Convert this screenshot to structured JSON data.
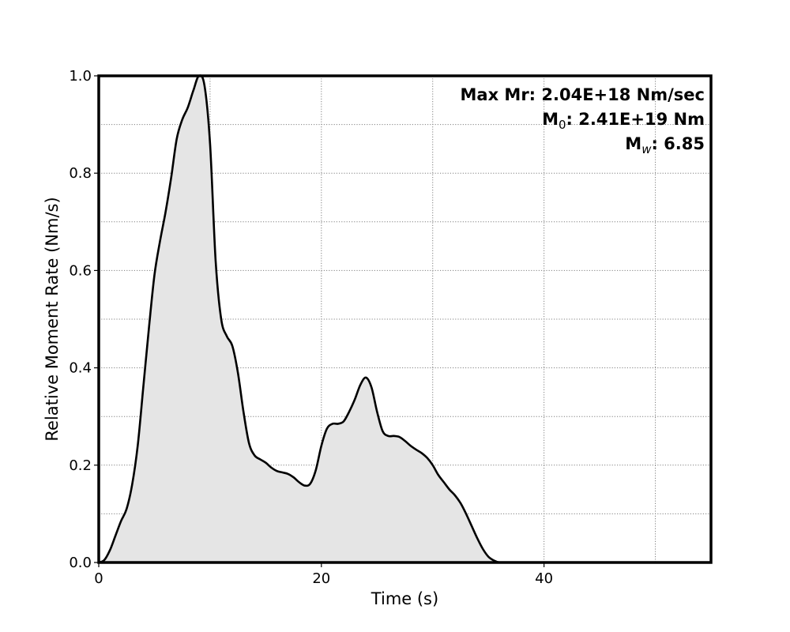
{
  "chart_data": {
    "type": "area",
    "xlabel": "Time (s)",
    "ylabel": "Relative Moment Rate (Nm/s)",
    "xlim": [
      0,
      55
    ],
    "ylim": [
      0,
      1.0
    ],
    "x_ticks": [
      0,
      20,
      40
    ],
    "x_tick_labels": [
      "0",
      "20",
      "40"
    ],
    "y_ticks": [
      0,
      0.2,
      0.4,
      0.6,
      0.8,
      1.0
    ],
    "y_tick_labels": [
      "0.0",
      "0.2",
      "0.4",
      "0.6",
      "0.8",
      "1.0"
    ],
    "x_grid": [
      0,
      10,
      20,
      30,
      40,
      50
    ],
    "y_grid": [
      0,
      0.1,
      0.2,
      0.3,
      0.4,
      0.5,
      0.6,
      0.7,
      0.8,
      0.9,
      1.0
    ],
    "grid": true,
    "line_color": "#000000",
    "fill_color": "#e5e5e5",
    "series": [
      {
        "x": [
          0,
          0.5,
          1,
          1.5,
          2,
          2.5,
          3,
          3.5,
          4,
          4.5,
          5,
          5.5,
          6,
          6.5,
          7,
          7.5,
          8,
          8.5,
          9,
          9.5,
          10,
          10.5,
          11,
          11.5,
          12,
          12.5,
          13,
          13.5,
          14,
          14.5,
          15,
          15.5,
          16,
          16.5,
          17,
          17.5,
          18,
          18.5,
          19,
          19.5,
          20,
          20.5,
          21,
          21.5,
          22,
          22.5,
          23,
          23.5,
          24,
          24.5,
          25,
          25.5,
          26,
          26.5,
          27,
          27.5,
          28,
          28.5,
          29,
          29.5,
          30,
          30.5,
          31,
          31.5,
          32,
          32.5,
          33,
          33.5,
          34,
          34.5,
          35,
          35.5,
          36,
          36.5,
          37,
          38,
          40,
          45,
          50,
          55
        ],
        "y": [
          0.0,
          0.005,
          0.025,
          0.055,
          0.085,
          0.11,
          0.16,
          0.24,
          0.36,
          0.48,
          0.59,
          0.66,
          0.72,
          0.79,
          0.87,
          0.91,
          0.935,
          0.97,
          1.0,
          0.98,
          0.86,
          0.62,
          0.5,
          0.465,
          0.445,
          0.39,
          0.31,
          0.245,
          0.22,
          0.212,
          0.205,
          0.195,
          0.188,
          0.185,
          0.182,
          0.175,
          0.165,
          0.158,
          0.162,
          0.19,
          0.24,
          0.275,
          0.285,
          0.285,
          0.29,
          0.31,
          0.335,
          0.365,
          0.38,
          0.36,
          0.31,
          0.27,
          0.26,
          0.26,
          0.258,
          0.25,
          0.24,
          0.232,
          0.225,
          0.215,
          0.2,
          0.18,
          0.165,
          0.15,
          0.138,
          0.122,
          0.1,
          0.075,
          0.05,
          0.028,
          0.012,
          0.004,
          0.0,
          0.0,
          0.0,
          0.0,
          0.0,
          0.0,
          0.0,
          0.0
        ]
      }
    ],
    "annotations": {
      "line1": "Max Mr: 2.04E+18 Nm/sec",
      "line2_prefix": "M",
      "line2_sub": "0",
      "line2_rest": ": 2.41E+19 Nm",
      "line3_prefix": "M",
      "line3_sub": "w",
      "line3_rest": ": 6.85"
    }
  }
}
